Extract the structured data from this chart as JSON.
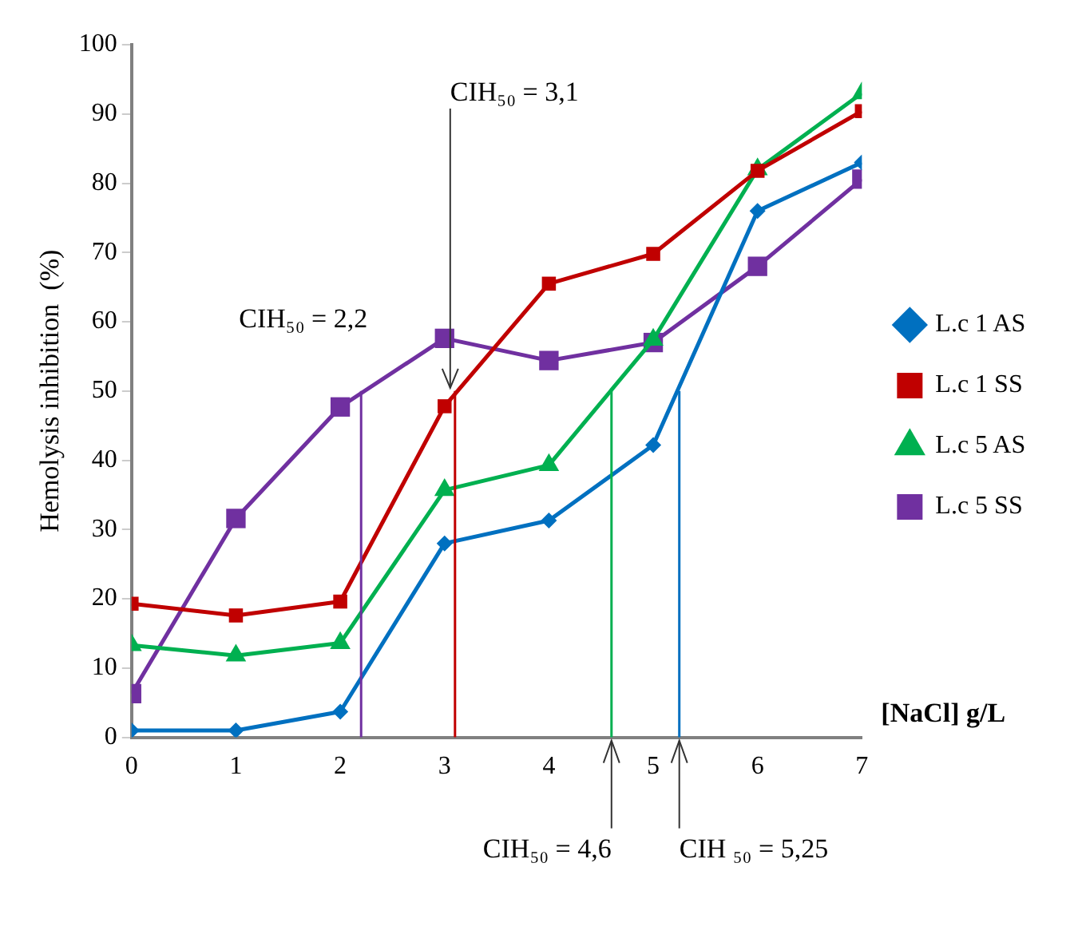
{
  "chart_data": {
    "type": "line",
    "xlabel": "[NaCl] g/L",
    "ylabel": "Hemolysis inhibition  (%)",
    "x": [
      0,
      1,
      2,
      3,
      4,
      5,
      6,
      7
    ],
    "xlim": [
      0,
      7
    ],
    "xticks": [
      0,
      1,
      2,
      3,
      4,
      5,
      6,
      7
    ],
    "ylim": [
      0,
      100
    ],
    "yticks": [
      0,
      10,
      20,
      30,
      40,
      50,
      60,
      70,
      80,
      90,
      100
    ],
    "grid": false,
    "legend": "right",
    "series": [
      {
        "name": "L.c 1 AS",
        "color": "#0070c0",
        "marker": "diamond",
        "values": [
          1,
          1,
          3.7,
          28,
          31.3,
          42.2,
          76,
          83
        ]
      },
      {
        "name": "L.c 1 SS",
        "color": "#c00000",
        "marker": "square",
        "values": [
          19.3,
          17.6,
          19.6,
          47.8,
          65.5,
          69.8,
          81.8,
          90.4
        ]
      },
      {
        "name": "L.c 5 AS",
        "color": "#00b050",
        "marker": "triangle",
        "values": [
          13.3,
          11.8,
          13.6,
          35.7,
          39.3,
          57.4,
          82,
          93
        ]
      },
      {
        "name": "L.c 5 SS",
        "color": "#7030a0",
        "marker": "square",
        "values": [
          6.3,
          31.6,
          47.7,
          57.6,
          54.4,
          57,
          68,
          80.6
        ]
      }
    ],
    "ref_lines": [
      {
        "axis": "x",
        "value": 2.2,
        "label": "CIH₅₀ = 2,2",
        "color": "#7030a0"
      },
      {
        "axis": "x",
        "value": 3.1,
        "label": "CIH₅₀ = 3,1",
        "color": "#c00000"
      },
      {
        "axis": "x",
        "value": 4.6,
        "label": "CIH₅₀ = 4,6",
        "color": "#00b050"
      },
      {
        "axis": "x",
        "value": 5.25,
        "label": "CIH ₅₀ = 5,25",
        "color": "#0070c0"
      }
    ]
  }
}
